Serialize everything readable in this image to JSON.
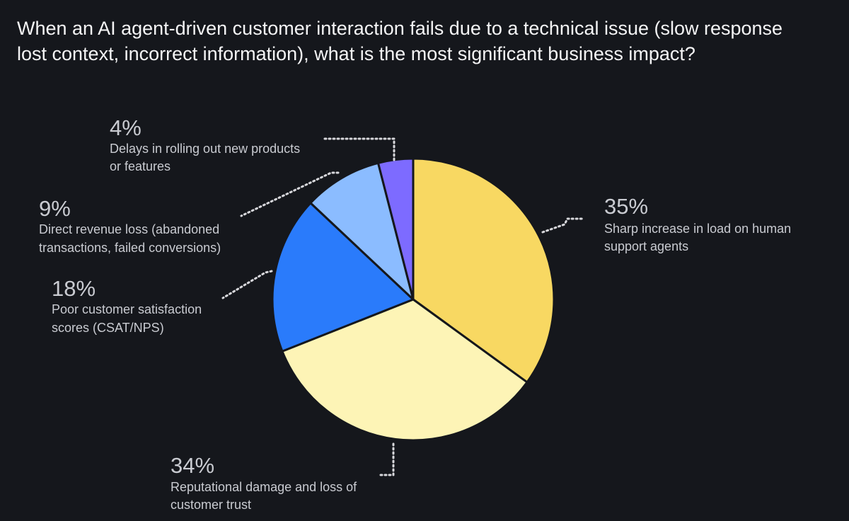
{
  "chart_data": {
    "type": "pie",
    "title_lines": [
      "When an AI agent-driven customer interaction fails due to a technical issue (slow response",
      "lost context, incorrect information), what is the most significant business impact?"
    ],
    "slices": [
      {
        "value": 35,
        "pct_label": "35%",
        "label_lines": [
          "Sharp increase in load on human",
          "support agents"
        ],
        "color": "#f8d862"
      },
      {
        "value": 34,
        "pct_label": "34%",
        "label_lines": [
          "Reputational damage and loss of",
          "customer trust"
        ],
        "color": "#fdf4b6"
      },
      {
        "value": 18,
        "pct_label": "18%",
        "label_lines": [
          "Poor customer satisfaction",
          "scores (CSAT/NPS)"
        ],
        "color": "#2a7bfb"
      },
      {
        "value": 9,
        "pct_label": "9%",
        "label_lines": [
          "Direct revenue loss (abandoned",
          "transactions, failed conversions)"
        ],
        "color": "#8bbcff"
      },
      {
        "value": 4,
        "pct_label": "4%",
        "label_lines": [
          "Delays in rolling out new products",
          "or features"
        ],
        "color": "#7d6bff"
      }
    ]
  }
}
